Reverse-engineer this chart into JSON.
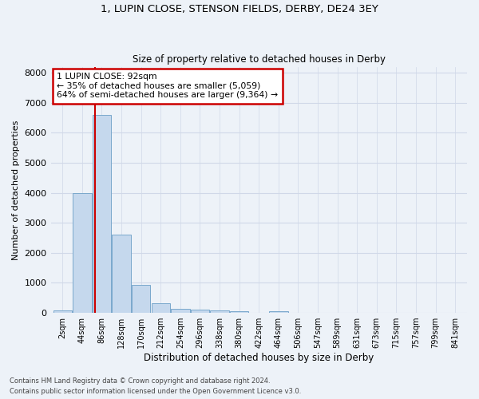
{
  "title1": "1, LUPIN CLOSE, STENSON FIELDS, DERBY, DE24 3EY",
  "title2": "Size of property relative to detached houses in Derby",
  "xlabel": "Distribution of detached houses by size in Derby",
  "ylabel": "Number of detached properties",
  "bin_labels": [
    "2sqm",
    "44sqm",
    "86sqm",
    "128sqm",
    "170sqm",
    "212sqm",
    "254sqm",
    "296sqm",
    "338sqm",
    "380sqm",
    "422sqm",
    "464sqm",
    "506sqm",
    "547sqm",
    "589sqm",
    "631sqm",
    "673sqm",
    "715sqm",
    "757sqm",
    "799sqm",
    "841sqm"
  ],
  "bar_values": [
    75,
    3990,
    6600,
    2620,
    940,
    320,
    130,
    120,
    75,
    60,
    0,
    60,
    0,
    0,
    0,
    0,
    0,
    0,
    0,
    0,
    0
  ],
  "bar_color": "#c5d8ed",
  "bar_edge_color": "#7aa8cc",
  "annotation_text_line1": "1 LUPIN CLOSE: 92sqm",
  "annotation_text_line2": "← 35% of detached houses are smaller (5,059)",
  "annotation_text_line3": "64% of semi-detached houses are larger (9,364) →",
  "annotation_box_color": "#ffffff",
  "annotation_box_edge": "#cc0000",
  "vline_color": "#cc0000",
  "ylim": [
    0,
    8200
  ],
  "yticks": [
    0,
    1000,
    2000,
    3000,
    4000,
    5000,
    6000,
    7000,
    8000
  ],
  "grid_color": "#d0d8e8",
  "bg_color": "#edf2f8",
  "footnote1": "Contains HM Land Registry data © Crown copyright and database right 2024.",
  "footnote2": "Contains public sector information licensed under the Open Government Licence v3.0."
}
